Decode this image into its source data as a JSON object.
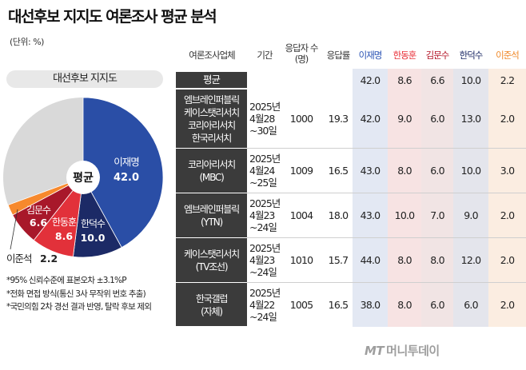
{
  "title": "대선후보 지지도 여론조사 평균 분석",
  "unit": "(단위: %)",
  "pie": {
    "title": "대선후보 지지도",
    "center_label": "평균",
    "label_lee": "이재명",
    "label_han": "한동훈",
    "label_kim": "김문수",
    "label_hdk": "한덕수",
    "label_ljs": "이준석",
    "value_lee": "42.0",
    "value_han": "8.6",
    "value_kim": "6.6",
    "value_hdk": "10.0",
    "value_ljs": "2.2"
  },
  "notes": [
    "*95% 신뢰수준에 표본오차 ±3.1%P",
    "*전화 면접 방식(통신 3사 무작위 번호 추출)",
    "*국민의힘 2차 경선 결과 반영, 탈락 후보 제외"
  ],
  "table": {
    "headers": {
      "pollster": "여론조사업체",
      "period": "기간",
      "sample_l1": "응답자 수",
      "sample_l2": "(명)",
      "rate": "응답률",
      "lee": "이재명",
      "han": "한동훈",
      "kim": "김문수",
      "hdk": "한덕수",
      "ljs": "이준석"
    },
    "average": {
      "label": "평균",
      "lee": "42.0",
      "han": "8.6",
      "kim": "6.6",
      "hdk": "10.0",
      "ljs": "2.2"
    },
    "rows": [
      {
        "pollster": [
          "엠브레인퍼블릭",
          "케이스탯리서치",
          "코리아리서치",
          "한국리서치"
        ],
        "period": [
          "2025년",
          "4월28",
          "~30일"
        ],
        "sample": "1000",
        "rate": "19.3",
        "lee": "42.0",
        "han": "9.0",
        "kim": "6.0",
        "hdk": "13.0",
        "ljs": "2.0"
      },
      {
        "pollster": [
          "코리아리서치",
          "(MBC)"
        ],
        "period": [
          "2025년",
          "4월24",
          "~25일"
        ],
        "sample": "1009",
        "rate": "16.5",
        "lee": "43.0",
        "han": "8.0",
        "kim": "6.0",
        "hdk": "10.0",
        "ljs": "3.0"
      },
      {
        "pollster": [
          "엠브레인퍼블릭",
          "(YTN)"
        ],
        "period": [
          "2025년",
          "4월23",
          "~24일"
        ],
        "sample": "1004",
        "rate": "18.0",
        "lee": "43.0",
        "han": "10.0",
        "kim": "7.0",
        "hdk": "9.0",
        "ljs": "2.0"
      },
      {
        "pollster": [
          "케이스탯리서치",
          "(TV조선)"
        ],
        "period": [
          "2025년",
          "4월23",
          "~24일"
        ],
        "sample": "1010",
        "rate": "15.7",
        "lee": "44.0",
        "han": "8.0",
        "kim": "8.0",
        "hdk": "12.0",
        "ljs": "2.0"
      },
      {
        "pollster": [
          "한국갤럽",
          "(자체)"
        ],
        "period": [
          "2025년",
          "4월22",
          "~24일"
        ],
        "sample": "1005",
        "rate": "16.5",
        "lee": "38.0",
        "han": "8.0",
        "kim": "6.0",
        "hdk": "6.0",
        "ljs": "2.0"
      }
    ]
  },
  "colors": {
    "lee": "#2a4ea6",
    "han": "#e2313a",
    "kim": "#a8182a",
    "hdk": "#1c2a66",
    "ljs": "#f7892d",
    "other": "#d9d9d9",
    "header_lee": "#2d55b5",
    "header_han": "#e8313a",
    "header_kim": "#b5192a",
    "header_hdk": "#1c2a66",
    "header_ljs": "#f08a2a",
    "band_lee": "#e3e8f3",
    "band_han": "#f7e3e3",
    "band_kim": "#f1e4e4",
    "band_hdk": "#e4e5ec",
    "band_ljs": "#fbede1"
  },
  "watermark": {
    "mt": "MT",
    "name": "머니투데이"
  },
  "chart_data": {
    "type": "pie",
    "title": "대선후보 지지도",
    "center_label": "평균",
    "categories": [
      "이재명",
      "한덕수",
      "한동훈",
      "김문수",
      "이준석"
    ],
    "values": [
      42.0,
      10.0,
      8.6,
      6.6,
      2.2
    ]
  }
}
